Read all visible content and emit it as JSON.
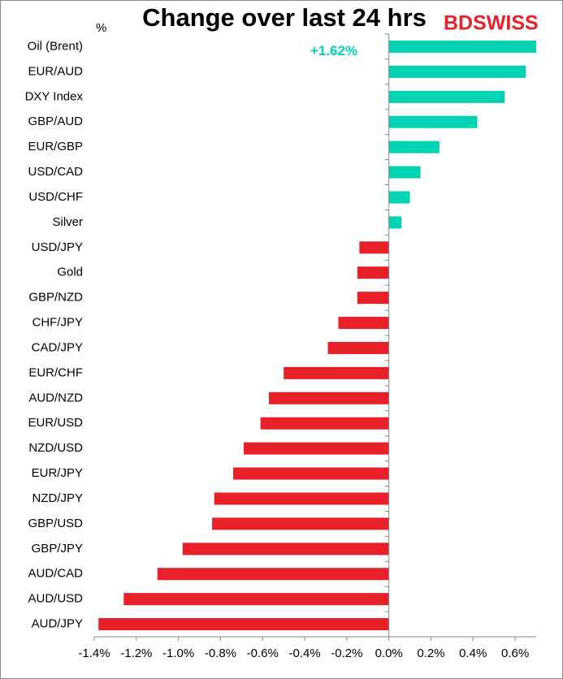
{
  "chart_data": {
    "type": "hbar",
    "title": "Change over last 24 hrs",
    "unit_label": "%",
    "logo": "BDSWISS",
    "categories": [
      "Oil (Brent)",
      "EUR/AUD",
      "DXY Index",
      "GBP/AUD",
      "EUR/GBP",
      "USD/CAD",
      "USD/CHF",
      "Silver",
      "USD/JPY",
      "Gold",
      "GBP/NZD",
      "CHF/JPY",
      "CAD/JPY",
      "EUR/CHF",
      "AUD/NZD",
      "EUR/USD",
      "NZD/USD",
      "EUR/JPY",
      "NZD/JPY",
      "GBP/USD",
      "GBP/JPY",
      "AUD/CAD",
      "AUD/USD",
      "AUD/JPY"
    ],
    "values": [
      1.62,
      0.65,
      0.55,
      0.42,
      0.24,
      0.15,
      0.1,
      0.06,
      -0.14,
      -0.15,
      -0.15,
      -0.24,
      -0.29,
      -0.5,
      -0.57,
      -0.61,
      -0.69,
      -0.74,
      -0.83,
      -0.84,
      -0.98,
      -1.1,
      -1.26,
      -1.38
    ],
    "value_labels": [
      "+1.62%",
      null,
      null,
      null,
      null,
      null,
      null,
      null,
      null,
      null,
      null,
      null,
      null,
      null,
      null,
      null,
      null,
      null,
      null,
      null,
      null,
      null,
      null,
      null
    ],
    "positive_color": "#00d3b3",
    "negative_color": "#e8202a",
    "xlim": [
      -1.4,
      0.7
    ],
    "xticks": [
      {
        "value": -1.4,
        "label": "-1.4%"
      },
      {
        "value": -1.2,
        "label": "-1.2%"
      },
      {
        "value": -1.0,
        "label": "-1.0%"
      },
      {
        "value": -0.8,
        "label": "-0.8%"
      },
      {
        "value": -0.6,
        "label": "-0.6%"
      },
      {
        "value": -0.4,
        "label": "-0.4%"
      },
      {
        "value": -0.2,
        "label": "-0.2%"
      },
      {
        "value": 0,
        "label": "0.0%"
      },
      {
        "value": 0.2,
        "label": "0.2%"
      },
      {
        "value": 0.4,
        "label": "0.4%"
      },
      {
        "value": 0.6,
        "label": "0.6%"
      }
    ]
  }
}
